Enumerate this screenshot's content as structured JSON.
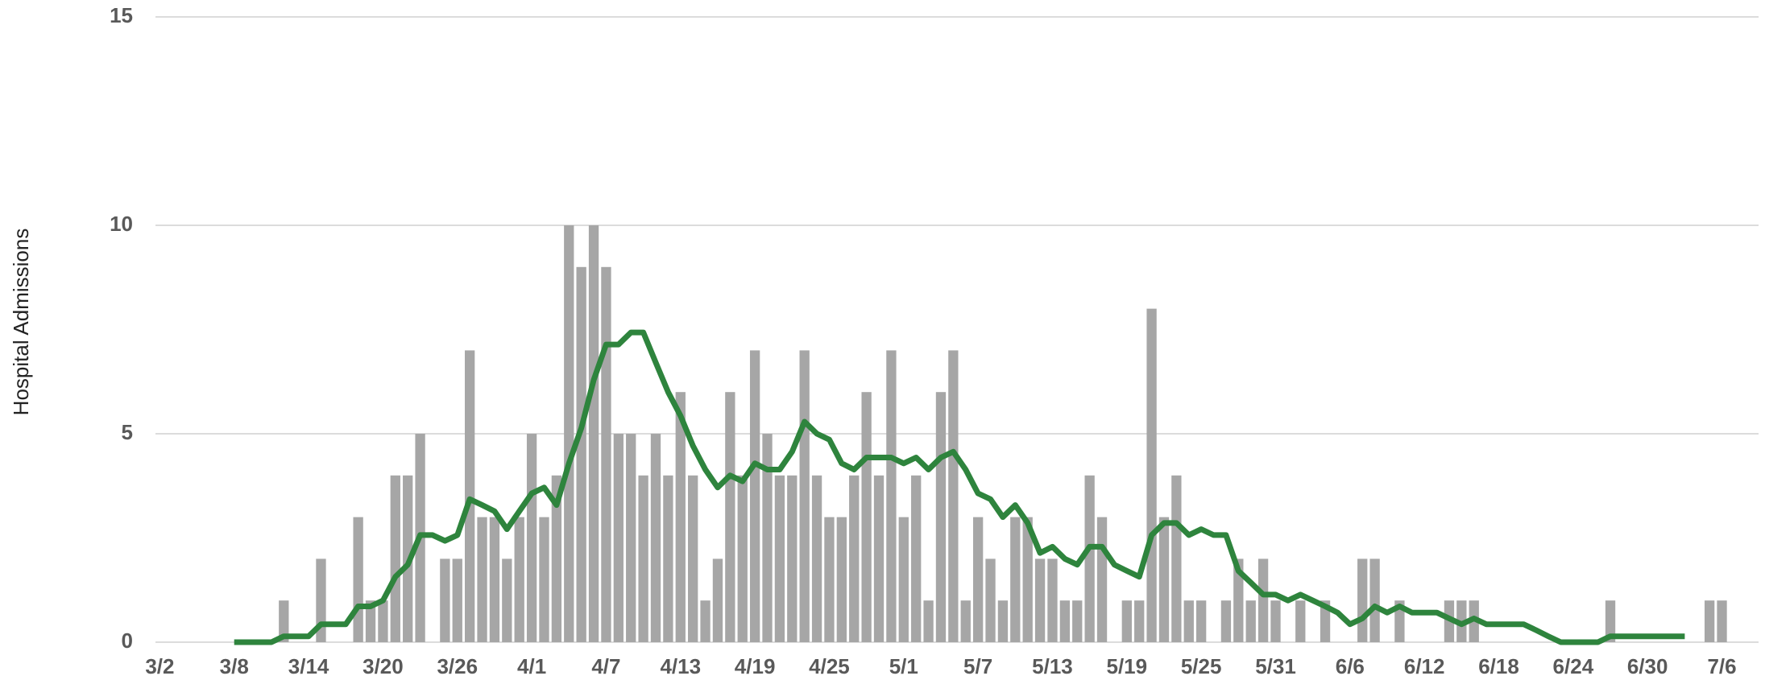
{
  "chart_data": {
    "type": "bar",
    "y_label": "Hospital Admissions",
    "categories": [
      "3/2",
      null,
      null,
      null,
      null,
      null,
      "3/8",
      null,
      null,
      null,
      null,
      null,
      "3/14",
      null,
      null,
      null,
      null,
      null,
      "3/20",
      null,
      null,
      null,
      null,
      null,
      "3/26",
      null,
      null,
      null,
      null,
      null,
      "4/1",
      null,
      null,
      null,
      null,
      null,
      "4/7",
      null,
      null,
      null,
      null,
      null,
      "4/13",
      null,
      null,
      null,
      null,
      null,
      "4/19",
      null,
      null,
      null,
      null,
      null,
      "4/25",
      null,
      null,
      null,
      null,
      null,
      "5/1",
      null,
      null,
      null,
      null,
      null,
      "5/7",
      null,
      null,
      null,
      null,
      null,
      "5/13",
      null,
      null,
      null,
      null,
      null,
      "5/19",
      null,
      null,
      null,
      null,
      null,
      "5/25",
      null,
      null,
      null,
      null,
      null,
      "5/31",
      null,
      null,
      null,
      null,
      null,
      "6/6",
      null,
      null,
      null,
      null,
      null,
      "6/12",
      null,
      null,
      null,
      null,
      null,
      "6/18",
      null,
      null,
      null,
      null,
      null,
      "6/24",
      null,
      null,
      null,
      null,
      null,
      "6/30",
      null,
      null,
      null,
      null,
      null,
      "7/6",
      null
    ],
    "series": [
      {
        "type": "bar",
        "color": "#a6a6a6",
        "values": [
          0,
          0,
          0,
          0,
          0,
          0,
          0,
          0,
          0,
          0,
          1,
          0,
          0,
          2,
          0,
          0,
          3,
          1,
          1,
          4,
          4,
          5,
          0,
          2,
          2,
          7,
          3,
          3,
          2,
          3,
          5,
          3,
          4,
          10,
          9,
          10,
          9,
          5,
          5,
          4,
          5,
          4,
          6,
          4,
          1,
          2,
          6,
          4,
          7,
          5,
          4,
          4,
          7,
          4,
          3,
          3,
          4,
          6,
          4,
          7,
          3,
          4,
          1,
          6,
          7,
          1,
          3,
          2,
          1,
          3,
          3,
          2,
          2,
          1,
          1,
          4,
          3,
          0,
          1,
          1,
          8,
          3,
          4,
          1,
          1,
          0,
          1,
          2,
          1,
          2,
          1,
          0,
          1,
          0,
          1,
          0,
          0,
          2,
          2,
          0,
          1,
          0,
          0,
          0,
          1,
          1,
          1,
          0,
          0,
          0,
          0,
          0,
          0,
          0,
          0,
          0,
          0,
          1,
          0,
          0,
          0,
          0,
          0,
          0,
          0,
          1,
          1,
          0
        ]
      },
      {
        "type": "line",
        "color": "#2e843d",
        "values": [
          null,
          null,
          null,
          null,
          null,
          null,
          0,
          0,
          0,
          0,
          0.14,
          0.14,
          0.14,
          0.43,
          0.43,
          0.43,
          0.86,
          0.86,
          1.0,
          1.57,
          1.86,
          2.57,
          2.57,
          2.43,
          2.57,
          3.43,
          3.29,
          3.14,
          2.71,
          3.14,
          3.57,
          3.71,
          3.29,
          4.29,
          5.14,
          6.29,
          7.14,
          7.14,
          7.43,
          7.43,
          6.71,
          6.0,
          5.43,
          4.71,
          4.14,
          3.71,
          4.0,
          3.86,
          4.29,
          4.14,
          4.14,
          4.57,
          5.29,
          5.0,
          4.86,
          4.29,
          4.14,
          4.43,
          4.43,
          4.43,
          4.29,
          4.43,
          4.14,
          4.43,
          4.57,
          4.14,
          3.57,
          3.43,
          3.0,
          3.29,
          2.86,
          2.14,
          2.29,
          2.0,
          1.86,
          2.29,
          2.29,
          1.86,
          1.71,
          1.57,
          2.57,
          2.86,
          2.86,
          2.57,
          2.71,
          2.57,
          2.57,
          1.71,
          1.43,
          1.14,
          1.14,
          1.0,
          1.14,
          1.0,
          0.86,
          0.71,
          0.43,
          0.57,
          0.86,
          0.71,
          0.86,
          0.71,
          0.71,
          0.71,
          0.57,
          0.43,
          0.57,
          0.43,
          0.43,
          0.43,
          0.43,
          0.29,
          0.14,
          0,
          0,
          0,
          0,
          0.14,
          0.14,
          0.14,
          0.14,
          0.14,
          0.14,
          0.14,
          null,
          null,
          null,
          null
        ]
      }
    ],
    "ylim": [
      0,
      15
    ],
    "yticks": [
      0,
      5,
      10,
      15
    ],
    "grid": true
  }
}
